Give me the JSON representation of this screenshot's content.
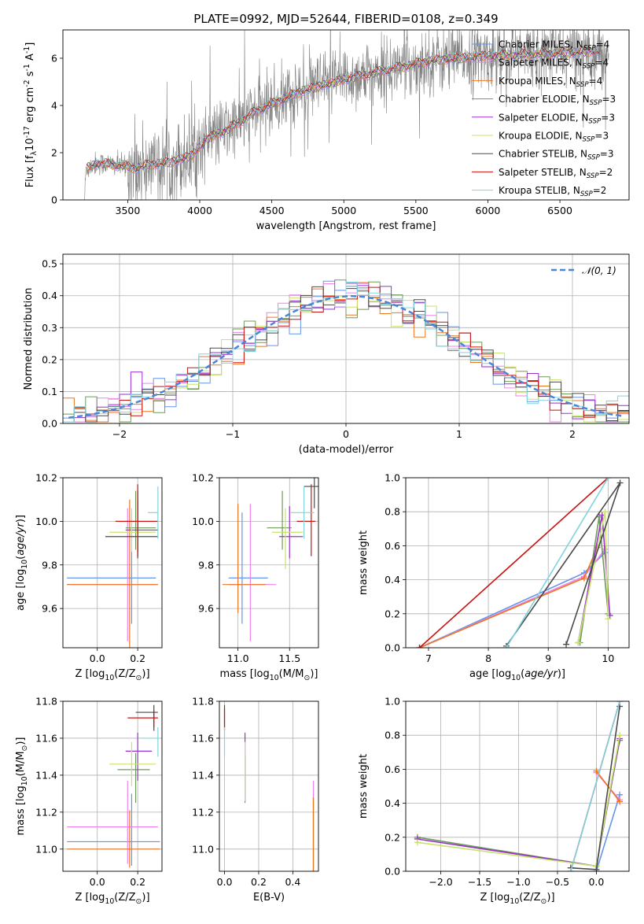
{
  "figure": {
    "title": "PLATE=0992, MJD=52644, FIBERID=0108, z=0.349"
  },
  "models": [
    {
      "name": "Chabrier MILES",
      "nssp": "4",
      "color": "#6495ed"
    },
    {
      "name": "Salpeter MILES",
      "nssp": "4",
      "color": "#ee82ee"
    },
    {
      "name": "Kroupa MILES",
      "nssp": "4",
      "color": "#ee7621"
    },
    {
      "name": "Chabrier ELODIE",
      "nssp": "3",
      "color": "#6e9b5a"
    },
    {
      "name": "Salpeter ELODIE",
      "nssp": "3",
      "color": "#9932cc"
    },
    {
      "name": "Kroupa ELODIE",
      "nssp": "3",
      "color": "#c8e36b"
    },
    {
      "name": "Chabrier STELIB",
      "nssp": "3",
      "color": "#4a4a4a"
    },
    {
      "name": "Salpeter STELIB",
      "nssp": "2",
      "color": "#cc1111"
    },
    {
      "name": "Kroupa STELIB",
      "nssp": "2",
      "color": "#80d4e0"
    }
  ],
  "chart_data": [
    {
      "id": "spectrum",
      "type": "line",
      "xlabel": "wavelength [Angstrom, rest frame]",
      "ylabel": "Flux [f$_\\lambda$10$^{-17}$ erg cm$^{-2}$ s$^{-1}$ A$^{-1}$]",
      "xlim": [
        3050,
        6980
      ],
      "ylim": [
        0,
        7.2
      ],
      "xticks": [
        3500,
        4000,
        4500,
        5000,
        5500,
        6000,
        6500
      ],
      "yticks": [
        0,
        2,
        4,
        6
      ],
      "grid": false,
      "legend": "top-right",
      "data_color": "#808080",
      "data_start": 3200,
      "data_end": 6840,
      "continuum": [
        [
          3200,
          0.0
        ],
        [
          3210,
          1.3
        ],
        [
          3280,
          1.55
        ],
        [
          3400,
          1.5
        ],
        [
          3550,
          1.35
        ],
        [
          3650,
          1.5
        ],
        [
          3800,
          1.6
        ],
        [
          3950,
          1.9
        ],
        [
          4050,
          2.6
        ],
        [
          4200,
          3.0
        ],
        [
          4400,
          3.8
        ],
        [
          4700,
          4.6
        ],
        [
          5000,
          5.1
        ],
        [
          5300,
          5.5
        ],
        [
          5600,
          5.9
        ],
        [
          6000,
          6.1
        ],
        [
          6400,
          6.2
        ],
        [
          6750,
          6.3
        ],
        [
          6840,
          6.3
        ]
      ],
      "noise_amplitude": 1.0
    },
    {
      "id": "residuals",
      "type": "histogram",
      "xlabel": "(data-model)/error",
      "ylabel": "Normed distribution",
      "xlim": [
        -2.5,
        2.5
      ],
      "ylim": [
        0,
        0.53
      ],
      "xticks": [
        -2,
        -1,
        0,
        1,
        2
      ],
      "yticks": [
        0.0,
        0.1,
        0.2,
        0.3,
        0.4,
        0.5
      ],
      "grid": true,
      "legend": "top-right",
      "reference": {
        "label": "$\\mathcal{N}(0,1)$",
        "color": "#4a86d8",
        "dash": true
      },
      "bin_width": 0.1,
      "bin_start": -2.5,
      "reference_values": [
        0.018,
        0.023,
        0.028,
        0.035,
        0.044,
        0.054,
        0.066,
        0.079,
        0.094,
        0.111,
        0.13,
        0.15,
        0.171,
        0.194,
        0.218,
        0.242,
        0.266,
        0.29,
        0.312,
        0.333,
        0.352,
        0.368,
        0.381,
        0.391,
        0.397,
        0.399,
        0.397,
        0.391,
        0.381,
        0.368,
        0.352,
        0.333,
        0.312,
        0.29,
        0.266,
        0.242,
        0.218,
        0.194,
        0.171,
        0.15,
        0.13,
        0.111,
        0.094,
        0.079,
        0.066,
        0.054,
        0.044,
        0.035,
        0.028,
        0.023
      ]
    },
    {
      "id": "age-vs-z",
      "type": "errorbar",
      "xlabel": "Z [log$_{10}$(Z/Z$_\\odot$)]",
      "ylabel": "age  [log$_{10}$($age/yr$)]",
      "xlim": [
        -0.17,
        0.32
      ],
      "ylim": [
        9.42,
        10.2
      ],
      "xticks": [
        0.0,
        0.2
      ],
      "yticks": [
        9.6,
        9.8,
        10.0,
        10.2
      ],
      "grid": true,
      "points": [
        {
          "model": 0,
          "x": 0.17,
          "xerr": [
            0.32,
            0.12
          ],
          "y": 9.74,
          "yerr": [
            0.21,
            0.3
          ]
        },
        {
          "model": 1,
          "x": 0.15,
          "xerr": [
            0.3,
            0.15
          ],
          "y": 9.71,
          "yerr": [
            0.26,
            0.35
          ]
        },
        {
          "model": 2,
          "x": 0.16,
          "xerr": [
            0.31,
            0.14
          ],
          "y": 9.71,
          "yerr": [
            0.3,
            0.39
          ]
        },
        {
          "model": 3,
          "x": 0.19,
          "xerr": [
            0.05,
            0.1
          ],
          "y": 9.97,
          "yerr": [
            0.1,
            0.17
          ]
        },
        {
          "model": 4,
          "x": 0.2,
          "xerr": [
            0.06,
            0.1
          ],
          "y": 9.96,
          "yerr": [
            0.1,
            0.14
          ]
        },
        {
          "model": 5,
          "x": 0.17,
          "xerr": [
            0.11,
            0.12
          ],
          "y": 9.95,
          "yerr": [
            0.09,
            0.11
          ]
        },
        {
          "model": 6,
          "x": 0.2,
          "xerr": [
            0.16,
            0.1
          ],
          "y": 9.93,
          "yerr": [
            0.1,
            0.21
          ]
        },
        {
          "model": 7,
          "x": 0.2,
          "xerr": [
            0.11,
            0.1
          ],
          "y": 10.0,
          "yerr": [
            0.16,
            0.17
          ]
        },
        {
          "model": 8,
          "x": 0.3,
          "xerr": [
            0.05,
            0.0
          ],
          "y": 10.04,
          "yerr": [
            0.12,
            0.12
          ]
        }
      ]
    },
    {
      "id": "age-vs-mass",
      "type": "errorbar",
      "xlabel": "mass [log$_{10}$(M/M$_\\odot$)]",
      "ylabel": "",
      "xlim": [
        10.82,
        11.78
      ],
      "ylim": [
        9.42,
        10.2
      ],
      "xticks": [
        11.0,
        11.5
      ],
      "yticks": [
        9.6,
        9.8,
        10.0,
        10.2
      ],
      "grid": true,
      "points": [
        {
          "model": 0,
          "x": 11.04,
          "xerr": [
            0.13,
            0.25
          ],
          "y": 9.74,
          "yerr": [
            0.21,
            0.3
          ]
        },
        {
          "model": 1,
          "x": 11.12,
          "xerr": [
            0.2,
            0.25
          ],
          "y": 9.71,
          "yerr": [
            0.26,
            0.37
          ]
        },
        {
          "model": 2,
          "x": 11.0,
          "xerr": [
            0.15,
            0.27
          ],
          "y": 9.71,
          "yerr": [
            0.13,
            0.37
          ]
        },
        {
          "model": 3,
          "x": 11.43,
          "xerr": [
            0.15,
            0.09
          ],
          "y": 9.97,
          "yerr": [
            0.1,
            0.17
          ]
        },
        {
          "model": 4,
          "x": 11.5,
          "xerr": [
            0.1,
            0.13
          ],
          "y": 9.93,
          "yerr": [
            0.1,
            0.14
          ]
        },
        {
          "model": 5,
          "x": 11.46,
          "xerr": [
            0.13,
            0.17
          ],
          "y": 9.95,
          "yerr": [
            0.17,
            0.11
          ]
        },
        {
          "model": 6,
          "x": 11.74,
          "xerr": [
            0.1,
            0.04
          ],
          "y": 10.16,
          "yerr": [
            0.1,
            0.04
          ]
        },
        {
          "model": 7,
          "x": 11.71,
          "xerr": [
            0.14,
            0.04
          ],
          "y": 10.0,
          "yerr": [
            0.16,
            0.17
          ]
        },
        {
          "model": 8,
          "x": 11.64,
          "xerr": [
            0.13,
            0.1
          ],
          "y": 10.04,
          "yerr": [
            0.12,
            0.12
          ]
        }
      ]
    },
    {
      "id": "weight-vs-age",
      "type": "line",
      "xlabel": "age  [log$_{10}$($age/yr$)]",
      "ylabel": "mass weight",
      "xlim": [
        6.62,
        10.35
      ],
      "ylim": [
        0,
        1.0
      ],
      "xticks": [
        7,
        8,
        9,
        10
      ],
      "yticks": [
        0.0,
        0.2,
        0.4,
        0.6,
        0.8,
        1.0
      ],
      "grid": true,
      "series": [
        {
          "model": 0,
          "x": [
            6.85,
            9.6,
            9.95
          ],
          "y": [
            0.0,
            0.44,
            0.56
          ]
        },
        {
          "model": 1,
          "x": [
            6.85,
            9.6,
            9.95
          ],
          "y": [
            0.0,
            0.42,
            0.58
          ]
        },
        {
          "model": 2,
          "x": [
            6.85,
            9.6,
            9.82
          ],
          "y": [
            0.0,
            0.41,
            0.59
          ]
        },
        {
          "model": 3,
          "x": [
            9.53,
            9.85,
            10.0
          ],
          "y": [
            0.03,
            0.77,
            0.2
          ]
        },
        {
          "model": 4,
          "x": [
            9.5,
            9.9,
            10.03
          ],
          "y": [
            0.03,
            0.78,
            0.19
          ]
        },
        {
          "model": 5,
          "x": [
            9.5,
            9.95,
            10.0
          ],
          "y": [
            0.03,
            0.8,
            0.17
          ]
        },
        {
          "model": 6,
          "x": [
            9.3,
            10.2,
            8.3
          ],
          "y": [
            0.02,
            0.97,
            0.01
          ]
        },
        {
          "model": 7,
          "x": [
            6.85,
            10.0
          ],
          "y": [
            0.0,
            1.0
          ]
        },
        {
          "model": 8,
          "x": [
            8.3,
            10.0
          ],
          "y": [
            0.0,
            1.0
          ]
        }
      ]
    },
    {
      "id": "mass-vs-z",
      "type": "errorbar",
      "xlabel": "Z [log$_{10}$(Z/Z$_\\odot$)]",
      "ylabel": "mass [log$_{10}$(M/M$_\\odot$)]",
      "xlim": [
        -0.17,
        0.32
      ],
      "ylim": [
        10.88,
        11.8
      ],
      "xticks": [
        0.0,
        0.2
      ],
      "yticks": [
        11.0,
        11.2,
        11.4,
        11.6,
        11.8
      ],
      "grid": true,
      "points": [
        {
          "model": 0,
          "x": 0.17,
          "xerr": [
            0.32,
            0.14
          ],
          "y": 11.04,
          "yerr": [
            0.13,
            0.26
          ]
        },
        {
          "model": 1,
          "x": 0.15,
          "xerr": [
            0.3,
            0.15
          ],
          "y": 11.12,
          "yerr": [
            0.2,
            0.25
          ]
        },
        {
          "model": 2,
          "x": 0.16,
          "xerr": [
            0.31,
            0.15
          ],
          "y": 11.0,
          "yerr": [
            0.1,
            0.21
          ]
        },
        {
          "model": 3,
          "x": 0.19,
          "xerr": [
            0.09,
            0.07
          ],
          "y": 11.43,
          "yerr": [
            0.18,
            0.09
          ]
        },
        {
          "model": 4,
          "x": 0.2,
          "xerr": [
            0.06,
            0.07
          ],
          "y": 11.53,
          "yerr": [
            0.16,
            0.1
          ]
        },
        {
          "model": 5,
          "x": 0.17,
          "xerr": [
            0.11,
            0.12
          ],
          "y": 11.46,
          "yerr": [
            0.12,
            0.12
          ]
        },
        {
          "model": 6,
          "x": 0.28,
          "xerr": [
            0.09,
            0.02
          ],
          "y": 11.74,
          "yerr": [
            0.1,
            0.04
          ]
        },
        {
          "model": 7,
          "x": 0.28,
          "xerr": [
            0.13,
            0.02
          ],
          "y": 11.71,
          "yerr": [
            0.05,
            0.04
          ]
        },
        {
          "model": 8,
          "x": 0.3,
          "xerr": [
            0.08,
            0.0
          ],
          "y": 11.6,
          "yerr": [
            0.1,
            0.06
          ]
        }
      ]
    },
    {
      "id": "mass-vs-ebv",
      "type": "errorbar",
      "xlabel": "E(B-V)",
      "ylabel": "",
      "xlim": [
        -0.03,
        0.55
      ],
      "ylim": [
        10.88,
        11.8
      ],
      "xticks": [
        0.0,
        0.2,
        0.4
      ],
      "yticks": [
        11.0,
        11.2,
        11.4,
        11.6,
        11.8
      ],
      "grid": true,
      "points": [
        {
          "model": 0,
          "x": 0.52,
          "xerr": [
            0,
            0
          ],
          "y": 11.04,
          "yerr": [
            0.16,
            0.24
          ]
        },
        {
          "model": 1,
          "x": 0.52,
          "xerr": [
            0,
            0
          ],
          "y": 11.12,
          "yerr": [
            0.24,
            0.25
          ]
        },
        {
          "model": 2,
          "x": 0.52,
          "xerr": [
            0,
            0
          ],
          "y": 11.0,
          "yerr": [
            0.13,
            0.28
          ]
        },
        {
          "model": 3,
          "x": 0.12,
          "xerr": [
            0,
            0
          ],
          "y": 11.43,
          "yerr": [
            0.18,
            0.08
          ]
        },
        {
          "model": 4,
          "x": 0.12,
          "xerr": [
            0,
            0
          ],
          "y": 11.5,
          "yerr": [
            0.24,
            0.13
          ]
        },
        {
          "model": 5,
          "x": 0.12,
          "xerr": [
            0,
            0
          ],
          "y": 11.46,
          "yerr": [
            0.2,
            0.12
          ]
        },
        {
          "model": 6,
          "x": 0.0,
          "xerr": [
            0,
            0
          ],
          "y": 11.74,
          "yerr": [
            0.08,
            0.04
          ]
        },
        {
          "model": 7,
          "x": 0.0,
          "xerr": [
            0,
            0
          ],
          "y": 11.71,
          "yerr": [
            0.07,
            0.05
          ]
        },
        {
          "model": 8,
          "x": 0.0,
          "xerr": [
            0,
            0
          ],
          "y": 11.6,
          "yerr": [
            0.1,
            0.06
          ]
        }
      ]
    },
    {
      "id": "weight-vs-z",
      "type": "line",
      "xlabel": "Z [log$_{10}$(Z/Z$_\\odot$)]",
      "ylabel": "mass weight",
      "xlim": [
        -2.45,
        0.42
      ],
      "ylim": [
        0,
        1.0
      ],
      "xticks": [
        -2.0,
        -1.5,
        -1.0,
        -0.5,
        0.0
      ],
      "yticks": [
        0.0,
        0.2,
        0.4,
        0.6,
        0.8,
        1.0
      ],
      "grid": true,
      "series": [
        {
          "model": 0,
          "x": [
            0.0,
            0.3
          ],
          "y": [
            0.0,
            0.45
          ]
        },
        {
          "model": 1,
          "x": [
            0.0,
            0.3
          ],
          "y": [
            0.58,
            0.42
          ]
        },
        {
          "model": 2,
          "x": [
            0.0,
            0.3
          ],
          "y": [
            0.59,
            0.41
          ]
        },
        {
          "model": 3,
          "x": [
            -2.3,
            0.0,
            0.3
          ],
          "y": [
            0.2,
            0.03,
            0.77
          ]
        },
        {
          "model": 4,
          "x": [
            -2.3,
            0.0,
            0.3
          ],
          "y": [
            0.19,
            0.03,
            0.78
          ]
        },
        {
          "model": 5,
          "x": [
            -2.3,
            0.0,
            0.3
          ],
          "y": [
            0.17,
            0.03,
            0.8
          ]
        },
        {
          "model": 6,
          "x": [
            -0.33,
            0.0,
            0.3
          ],
          "y": [
            0.02,
            0.01,
            0.97
          ]
        },
        {
          "model": 7,
          "x": [
            -0.33,
            0.3
          ],
          "y": [
            0.0,
            1.0
          ]
        },
        {
          "model": 8,
          "x": [
            -0.33,
            0.3
          ],
          "y": [
            0.0,
            1.0
          ]
        }
      ]
    }
  ]
}
